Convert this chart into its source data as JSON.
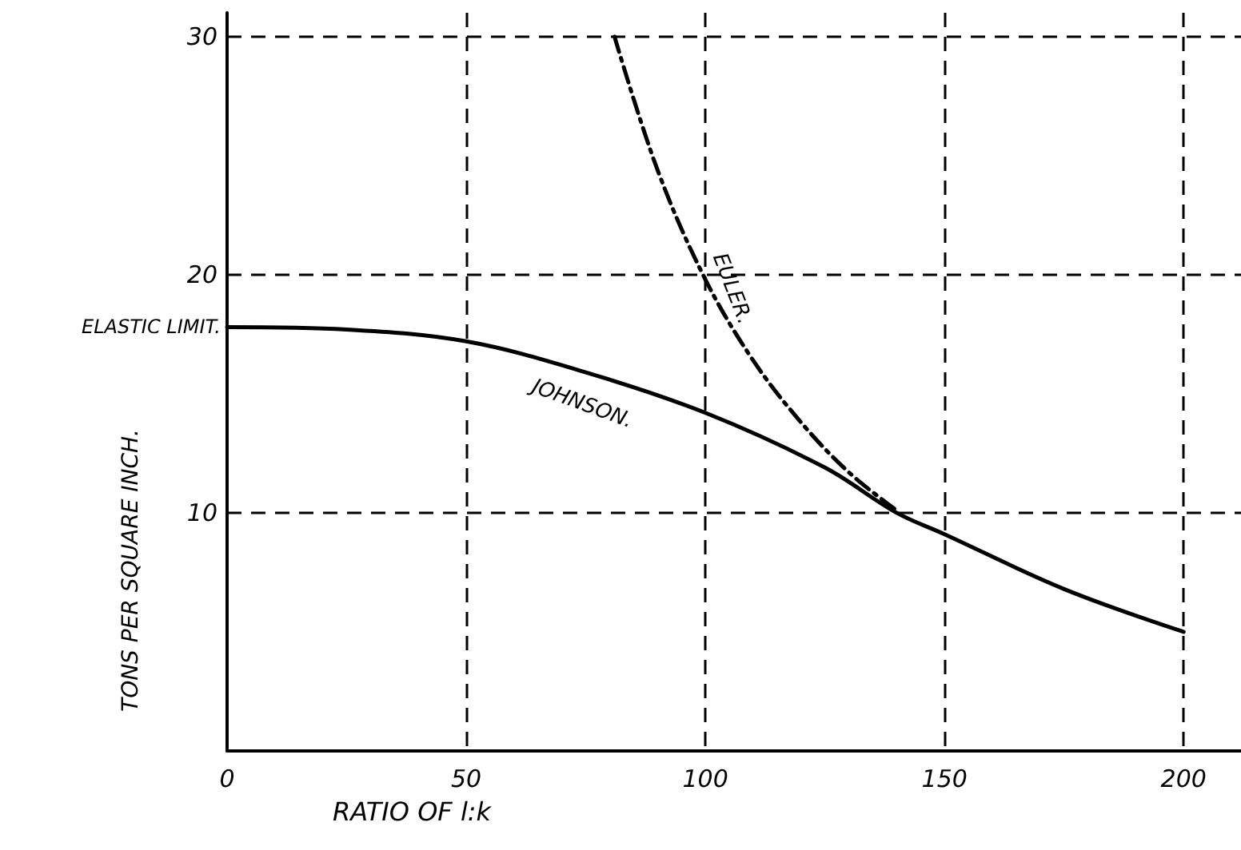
{
  "chart_data": {
    "type": "line",
    "xlabel": "RATIO OF l:k",
    "ylabel": "TONS PER SQUARE INCH.",
    "xlim": [
      0,
      212
    ],
    "xticks": [
      0,
      50,
      100,
      150,
      200
    ],
    "ylim": [
      0,
      31
    ],
    "yticks": [
      10,
      20,
      30
    ],
    "grid": true,
    "legend": false,
    "marker": "none",
    "annotations": [
      {
        "text": "ELASTIC LIMIT.",
        "x": 0,
        "y": 17.8
      }
    ],
    "series": [
      {
        "name": "JOHNSON.",
        "color": "#000000",
        "line_style": "solid",
        "x": [
          0,
          25,
          50,
          75,
          100,
          125,
          140,
          150,
          175,
          200
        ],
        "values": [
          17.8,
          17.7,
          17.2,
          15.9,
          14.2,
          11.9,
          10.0,
          9.1,
          6.8,
          5.0
        ]
      },
      {
        "name": "EULER.",
        "color": "#000000",
        "line_style": "dashed",
        "x": [
          81,
          90,
          100,
          110,
          120,
          130,
          140
        ],
        "values": [
          30,
          24.4,
          19.8,
          16.4,
          13.8,
          11.7,
          10.1
        ]
      }
    ]
  }
}
